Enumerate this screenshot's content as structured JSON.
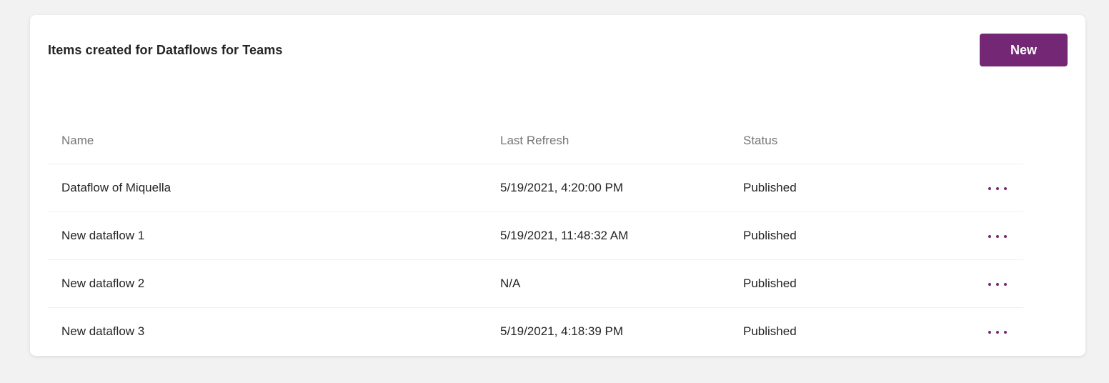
{
  "header": {
    "title": "Items created for Dataflows for Teams",
    "new_button_label": "New"
  },
  "colors": {
    "accent_purple": "#742774",
    "page_background": "#f2f2f2",
    "card_background": "#ffffff",
    "column_header_text": "#767676",
    "body_text": "#252423",
    "divider": "#f0f0f0"
  },
  "table": {
    "columns": [
      "Name",
      "Last Refresh",
      "Status"
    ],
    "actions_icon": "ellipsis-horizontal-icon",
    "rows": [
      {
        "name": "Dataflow of Miquella",
        "last_refresh": "5/19/2021, 4:20:00 PM",
        "status": "Published"
      },
      {
        "name": "New dataflow 1",
        "last_refresh": "5/19/2021, 11:48:32 AM",
        "status": "Published"
      },
      {
        "name": "New dataflow 2",
        "last_refresh": "N/A",
        "status": "Published"
      },
      {
        "name": "New dataflow 3",
        "last_refresh": "5/19/2021, 4:18:39 PM",
        "status": "Published"
      }
    ]
  }
}
